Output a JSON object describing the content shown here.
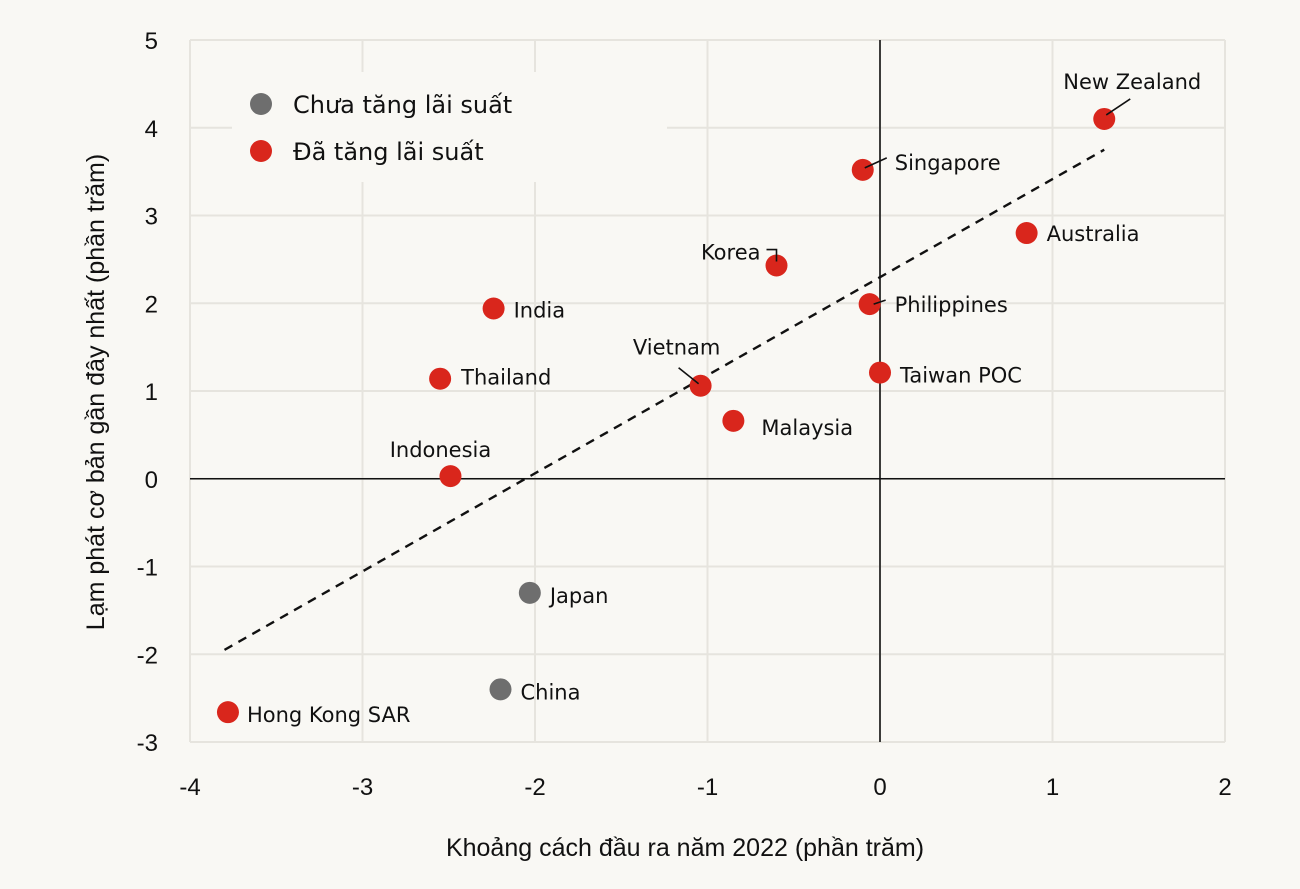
{
  "chart_data": {
    "type": "scatter",
    "title": "",
    "xlabel": "Khoảng cách đầu ra năm 2022 (phần trăm)",
    "ylabel": "Lạm phát cơ bản gần đây nhất (phần trăm)",
    "xlim": [
      -4,
      2
    ],
    "ylim": [
      -3,
      5
    ],
    "xticks": [
      -4,
      -3,
      -2,
      -1,
      0,
      1,
      2
    ],
    "yticks": [
      -3,
      -2,
      -1,
      0,
      1,
      2,
      3,
      4,
      5
    ],
    "xtick_labels": [
      "-4",
      "-3",
      "-2",
      "-1",
      "0",
      "1",
      "2"
    ],
    "ytick_labels": [
      "-3",
      "-2",
      "-1",
      "0",
      "1",
      "2",
      "3",
      "4",
      "5"
    ],
    "grid": true,
    "legend_position": "top-left",
    "colors": {
      "not_raised": "#6e6e6e",
      "raised": "#d9261c",
      "background": "#f9f8f4",
      "grid": "#e6e4de"
    },
    "series": [
      {
        "name": "Chưa tăng lãi suất",
        "color": "#6e6e6e",
        "points": [
          {
            "label": "Japan",
            "x": -2.03,
            "y": -1.3
          },
          {
            "label": "China",
            "x": -2.2,
            "y": -2.4
          }
        ]
      },
      {
        "name": "Đã tăng lãi suất",
        "color": "#d9261c",
        "points": [
          {
            "label": "New Zealand",
            "x": 1.3,
            "y": 4.1
          },
          {
            "label": "Singapore",
            "x": -0.1,
            "y": 3.52
          },
          {
            "label": "Australia",
            "x": 0.85,
            "y": 2.8
          },
          {
            "label": "Korea",
            "x": -0.6,
            "y": 2.43
          },
          {
            "label": "Philippines",
            "x": -0.06,
            "y": 1.99
          },
          {
            "label": "India",
            "x": -2.24,
            "y": 1.94
          },
          {
            "label": "Taiwan POC",
            "x": 0.0,
            "y": 1.21
          },
          {
            "label": "Thailand",
            "x": -2.55,
            "y": 1.14
          },
          {
            "label": "Vietnam",
            "x": -1.04,
            "y": 1.06
          },
          {
            "label": "Malaysia",
            "x": -0.85,
            "y": 0.66
          },
          {
            "label": "Indonesia",
            "x": -2.49,
            "y": 0.03
          },
          {
            "label": "Hong Kong SAR",
            "x": -3.78,
            "y": -2.66
          }
        ]
      }
    ],
    "trendline": {
      "style": "dashed",
      "x": [
        -3.8,
        1.3
      ],
      "y": [
        -1.95,
        3.75
      ]
    }
  }
}
